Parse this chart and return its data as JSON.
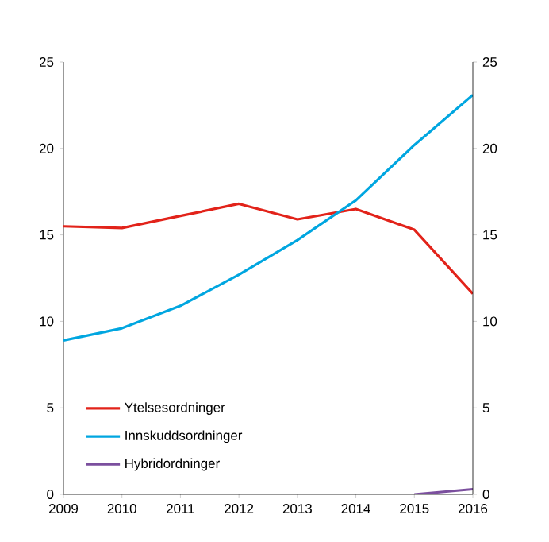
{
  "chart_data": {
    "type": "line",
    "x": [
      2009,
      2010,
      2011,
      2012,
      2013,
      2014,
      2015,
      2016
    ],
    "series": [
      {
        "name": "Ytelsesordninger",
        "color": "#e2231a",
        "values": [
          15.5,
          15.4,
          16.1,
          16.8,
          15.9,
          16.5,
          15.3,
          11.6
        ]
      },
      {
        "name": "Innskuddsordninger",
        "color": "#00a6e0",
        "values": [
          8.9,
          9.6,
          10.9,
          12.7,
          14.7,
          17.0,
          20.2,
          23.1
        ]
      },
      {
        "name": "Hybridordninger",
        "color": "#7b4f9e",
        "values": [
          null,
          null,
          null,
          null,
          null,
          null,
          0.0,
          0.3
        ]
      }
    ],
    "xlim": [
      2009,
      2016
    ],
    "xticks": [
      2009,
      2010,
      2011,
      2012,
      2013,
      2014,
      2015,
      2016
    ],
    "ylim": [
      0,
      25
    ],
    "yticks": [
      0,
      5,
      10,
      15,
      20,
      25
    ],
    "y2lim": [
      0,
      25
    ],
    "y2ticks": [
      0,
      5,
      10,
      15,
      20,
      25
    ],
    "legend": "bottom left"
  }
}
